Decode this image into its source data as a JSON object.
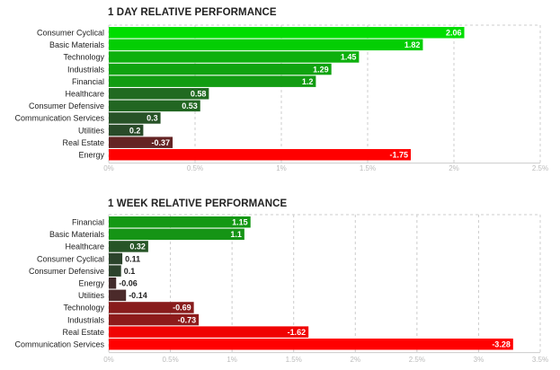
{
  "chart_data": [
    {
      "type": "bar",
      "orientation": "horizontal",
      "title": "1 DAY RELATIVE PERFORMANCE",
      "categories": [
        "Consumer Cyclical",
        "Basic Materials",
        "Technology",
        "Industrials",
        "Financial",
        "Healthcare",
        "Consumer Defensive",
        "Communication Services",
        "Utilities",
        "Real Estate",
        "Energy"
      ],
      "values": [
        2.06,
        1.82,
        1.45,
        1.29,
        1.2,
        0.58,
        0.53,
        0.3,
        0.2,
        -0.37,
        -1.75
      ],
      "value_labels": [
        "2.06",
        "1.82",
        "1.45",
        "1.29",
        "1.2",
        "0.58",
        "0.53",
        "0.3",
        "0.2",
        "-0.37",
        "-1.75"
      ],
      "xlim": [
        0,
        2.5
      ],
      "xticks": [
        "0%",
        "0.5%",
        "1%",
        "1.5%",
        "2%",
        "2.5%"
      ],
      "scale": "absolute value",
      "grid": true
    },
    {
      "type": "bar",
      "orientation": "horizontal",
      "title": "1 WEEK RELATIVE PERFORMANCE",
      "categories": [
        "Financial",
        "Basic Materials",
        "Healthcare",
        "Consumer Cyclical",
        "Consumer Defensive",
        "Energy",
        "Utilities",
        "Technology",
        "Industrials",
        "Real Estate",
        "Communication Services"
      ],
      "values": [
        1.15,
        1.1,
        0.32,
        0.11,
        0.1,
        -0.06,
        -0.14,
        -0.69,
        -0.73,
        -1.62,
        -3.28
      ],
      "value_labels": [
        "1.15",
        "1.1",
        "0.32",
        "0.11",
        "0.1",
        "-0.06",
        "-0.14",
        "-0.69",
        "-0.73",
        "-1.62",
        "-3.28"
      ],
      "xlim": [
        0,
        3.5
      ],
      "xticks": [
        "0%",
        "0.5%",
        "1%",
        "1.5%",
        "2%",
        "2.5%",
        "3%",
        "3.5%"
      ],
      "scale": "absolute value",
      "grid": true
    }
  ]
}
